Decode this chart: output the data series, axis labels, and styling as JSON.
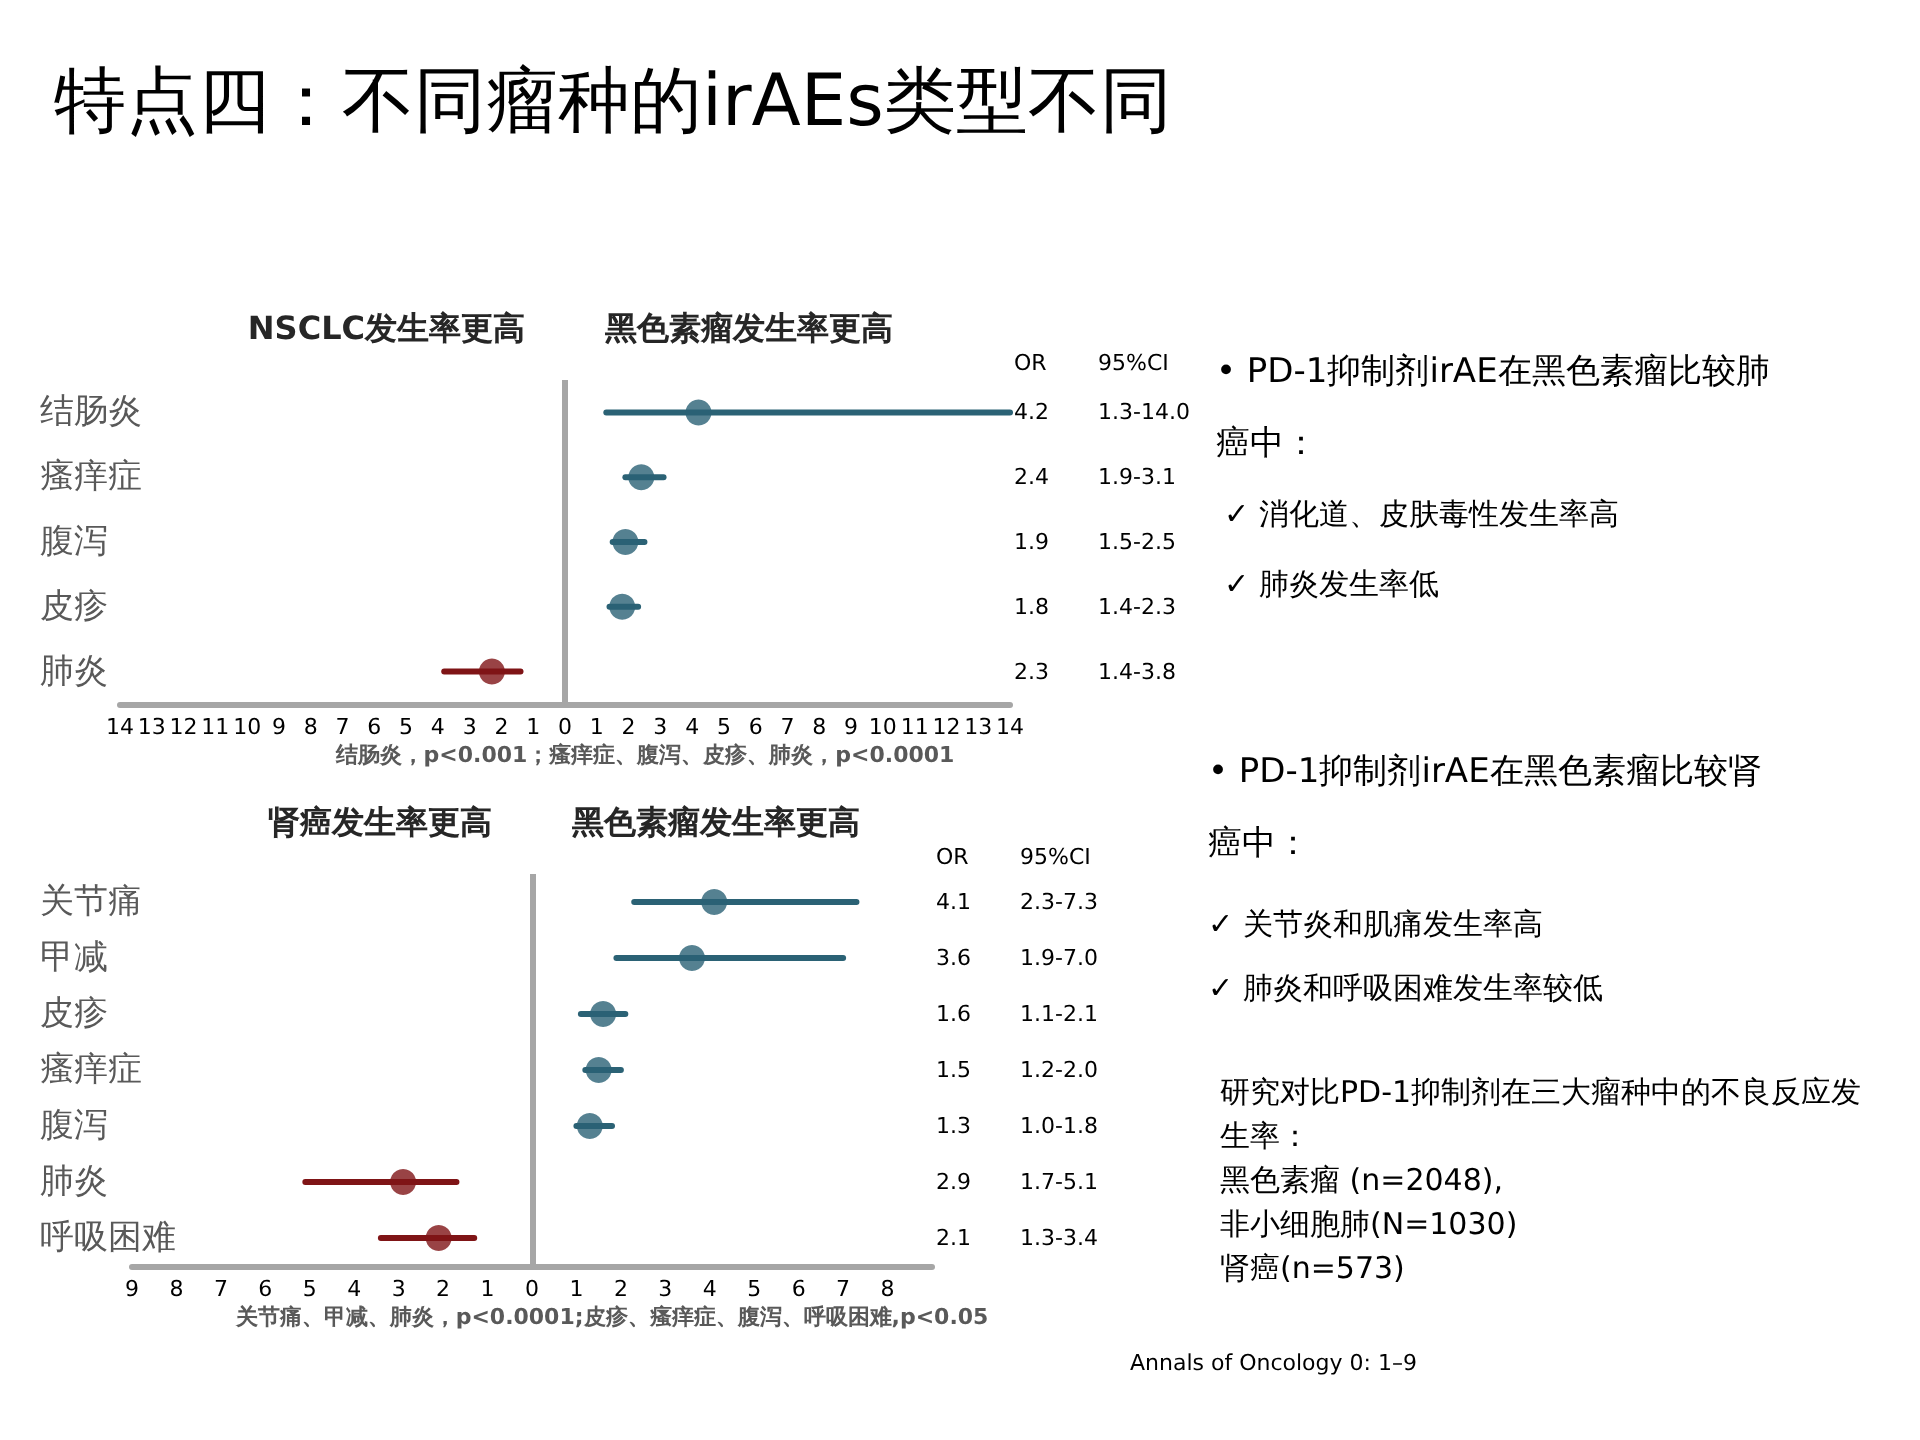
{
  "chart_data": [
    {
      "type": "scatter",
      "title": "特点四：不同瘤种的irAEs类型不同",
      "orientation": "horizontal",
      "categories": [
        "结肠炎",
        "瘙痒症",
        "腹泻",
        "皮疹",
        "肺炎"
      ],
      "values": [
        4.2,
        2.4,
        1.9,
        1.8,
        -2.3
      ],
      "errors": [
        [
          1.3,
          14.0
        ],
        [
          1.9,
          3.1
        ],
        [
          1.5,
          2.5
        ],
        [
          1.4,
          2.3
        ],
        [
          -3.8,
          -1.4
        ]
      ],
      "colors": [
        "#2b6275",
        "#2b6275",
        "#2b6275",
        "#2b6275",
        "#7f1416"
      ],
      "xlim": [
        -14,
        14
      ],
      "xticks": [
        {
          "value": -14,
          "label": "14"
        },
        {
          "value": -13,
          "label": "13"
        },
        {
          "value": -12,
          "label": "12"
        },
        {
          "value": -11,
          "label": "11"
        },
        {
          "value": -10,
          "label": "10"
        },
        {
          "value": -9,
          "label": "9"
        },
        {
          "value": -8,
          "label": "8"
        },
        {
          "value": -7,
          "label": "7"
        },
        {
          "value": -6,
          "label": "6"
        },
        {
          "value": -5,
          "label": "5"
        },
        {
          "value": -4,
          "label": "4"
        },
        {
          "value": -3,
          "label": "3"
        },
        {
          "value": -2,
          "label": "2"
        },
        {
          "value": -1,
          "label": "1"
        },
        0,
        1,
        2,
        3,
        4,
        5,
        6,
        7,
        8,
        9,
        10,
        11,
        12,
        13,
        14
      ],
      "ref_lines": [
        {
          "axis": "x",
          "value": 0,
          "color": "#a6a6a6"
        }
      ],
      "annotations": [
        "NSCLC发生率更高",
        "黑色素瘤发生率更高",
        "结肠炎，p<0.001；瘙痒症、腹泻、皮疹、肺炎，p<0.0001",
        "OR",
        "95%CI",
        "1.3-14.0",
        "1.9-3.1",
        "1.5-2.5",
        "1.4-2.3",
        "1.4-3.8",
        "4.2",
        "2.4",
        "1.9",
        "1.8",
        "2.3"
      ],
      "marker": "circle",
      "grid": false
    },
    {
      "type": "scatter",
      "orientation": "horizontal",
      "categories": [
        "关节痛",
        "甲减",
        "皮疹",
        "瘙痒症",
        "腹泻",
        "肺炎",
        "呼吸困难"
      ],
      "values": [
        4.1,
        3.6,
        1.6,
        1.5,
        1.3,
        -2.9,
        -2.1
      ],
      "errors": [
        [
          2.3,
          7.3
        ],
        [
          1.9,
          7.0
        ],
        [
          1.1,
          2.1
        ],
        [
          1.2,
          2.0
        ],
        [
          1.0,
          1.8
        ],
        [
          -5.1,
          -1.7
        ],
        [
          -3.4,
          -1.3
        ]
      ],
      "colors": [
        "#2b6275",
        "#2b6275",
        "#2b6275",
        "#2b6275",
        "#2b6275",
        "#7f1416",
        "#7f1416"
      ],
      "xlim": [
        -9,
        9
      ],
      "xticks": [
        {
          "value": -9,
          "label": "9"
        },
        {
          "value": -8,
          "label": "8"
        },
        {
          "value": -7,
          "label": "7"
        },
        {
          "value": -6,
          "label": "6"
        },
        {
          "value": -5,
          "label": "5"
        },
        {
          "value": -4,
          "label": "4"
        },
        {
          "value": -3,
          "label": "3"
        },
        {
          "value": -2,
          "label": "2"
        },
        {
          "value": -1,
          "label": "1"
        },
        0,
        1,
        2,
        3,
        4,
        5,
        6,
        7,
        8
      ],
      "ref_lines": [
        {
          "axis": "x",
          "value": 0,
          "color": "#a6a6a6"
        }
      ],
      "annotations": [
        "肾癌发生率更高",
        "黑色素瘤发生率更高",
        "关节痛、甲减、肺炎，p<0.0001;皮疹、瘙痒症、腹泻、呼吸困难,p<0.05",
        "OR",
        "95%CI",
        "2.3-7.3",
        "1.9-7.0",
        "1.1-2.1",
        "1.2-2.0",
        "1.0-1.8",
        "1.7-5.1",
        "1.3-3.4",
        "4.1",
        "3.6",
        "1.6",
        "1.5",
        "1.3",
        "2.9",
        "2.1"
      ],
      "marker": "circle",
      "grid": false
    },
    {
      "type": "other",
      "annotations": [
        "• PD-1抑制剂irAE在黑色素瘤比较肺癌中：",
        "✓ 消化道、皮肤毒性发生率高",
        "✓ 肺炎发生率低",
        "• PD-1抑制剂irAE在黑色素瘤比较肾癌中：",
        "✓ 关节炎和肌痛发生率高",
        "✓ 肺炎和呼吸困难发生率较低",
        "研究对比PD-1抑制剂在三大瘤种中的不良反应发生率：",
        "黑色素瘤 (n=2048),",
        "非小细胞肺(N=1030)",
        "肾癌(n=573)",
        "Annals of Oncology 0: 1–9"
      ]
    }
  ]
}
